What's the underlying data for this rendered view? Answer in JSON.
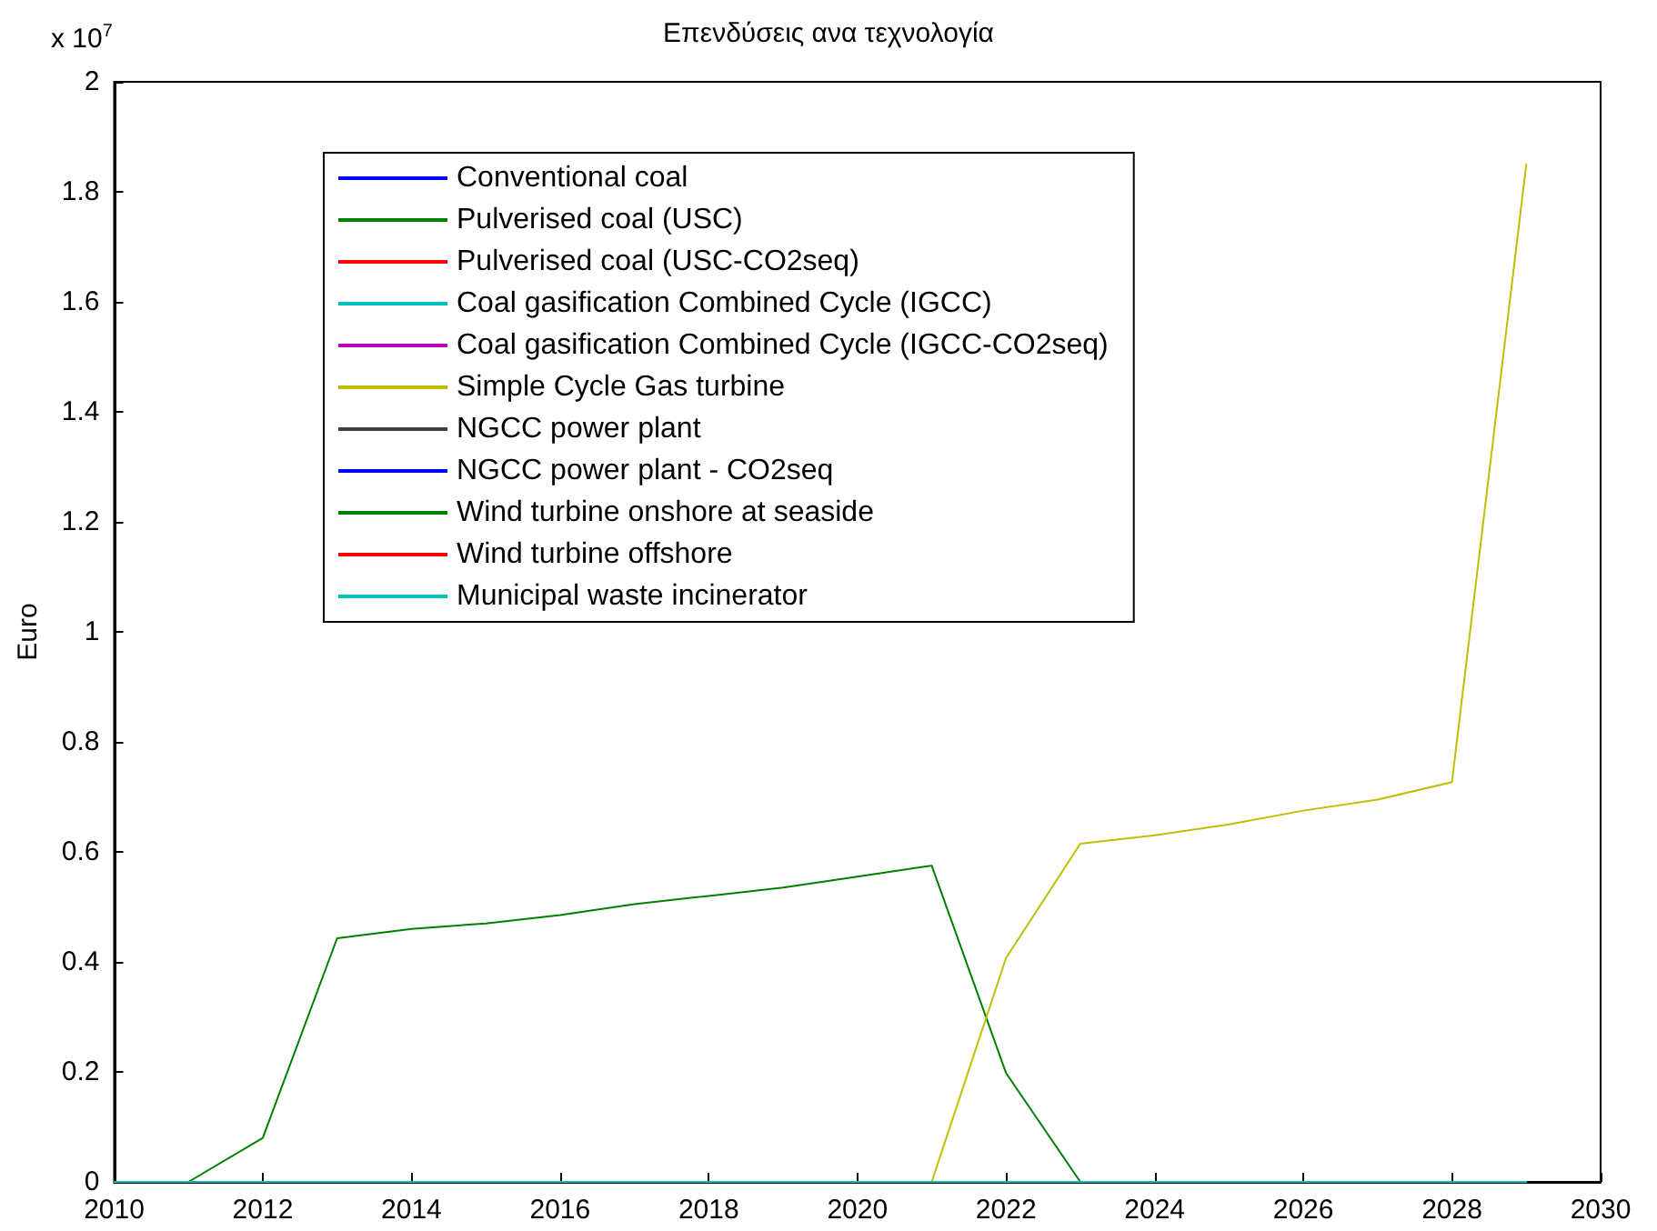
{
  "chart_data": {
    "type": "line",
    "title": "Επενδύσεις ανα τεχνολογία",
    "ylabel": "Euro",
    "annotations": [
      "x 10$^{7}$"
    ],
    "x": [
      2010,
      2011,
      2012,
      2013,
      2014,
      2015,
      2016,
      2017,
      2018,
      2019,
      2020,
      2021,
      2022,
      2023,
      2024,
      2025,
      2026,
      2027,
      2028,
      2029
    ],
    "xlim": [
      2010,
      2030
    ],
    "xticks": [
      2010,
      2012,
      2014,
      2016,
      2018,
      2020,
      2022,
      2024,
      2026,
      2028,
      2030
    ],
    "ylim": [
      0,
      2
    ],
    "yticks": [
      0,
      0.2,
      0.4,
      0.6,
      0.8,
      1,
      1.2,
      1.4,
      1.6,
      1.8,
      2
    ],
    "grid": false,
    "legend": "top left",
    "marker": "none",
    "line_style": "solid",
    "series": [
      {
        "name": "Conventional coal",
        "color": "#0000ff",
        "values": [
          null,
          null,
          null,
          null,
          null,
          null,
          null,
          null,
          null,
          null,
          null,
          null,
          null,
          null,
          null,
          null,
          null,
          null,
          null,
          null
        ]
      },
      {
        "name": "Pulverised coal (USC)",
        "color": "#008000",
        "values": [
          null,
          0,
          0.08,
          0.443,
          0.46,
          0.47,
          0.485,
          0.505,
          0.52,
          0.535,
          0.555,
          0.575,
          0.198,
          0,
          null,
          null,
          null,
          null,
          null,
          null
        ]
      },
      {
        "name": "Pulverised coal (USC-CO2seq)",
        "color": "#ff0000",
        "values": [
          null,
          null,
          null,
          null,
          null,
          null,
          null,
          null,
          null,
          null,
          null,
          null,
          null,
          null,
          null,
          null,
          null,
          null,
          null,
          null
        ]
      },
      {
        "name": "Coal gasification Combined Cycle (IGCC)",
        "color": "#00bfbf",
        "values": [
          null,
          null,
          null,
          null,
          null,
          null,
          null,
          null,
          null,
          null,
          null,
          null,
          null,
          null,
          null,
          null,
          null,
          null,
          null,
          null
        ]
      },
      {
        "name": "Coal gasification Combined Cycle (IGCC-CO2seq)",
        "color": "#bf00bf",
        "values": [
          null,
          null,
          null,
          null,
          null,
          null,
          null,
          null,
          null,
          null,
          null,
          null,
          null,
          null,
          null,
          null,
          null,
          null,
          null,
          null
        ]
      },
      {
        "name": "Simple Cycle Gas turbine",
        "color": "#bfbf00",
        "values": [
          null,
          null,
          null,
          null,
          null,
          null,
          null,
          null,
          null,
          null,
          null,
          0,
          0.407,
          0.615,
          0.63,
          0.65,
          0.675,
          0.695,
          0.727,
          1.85
        ]
      },
      {
        "name": "NGCC power plant",
        "color": "#404040",
        "values": [
          null,
          null,
          null,
          null,
          null,
          null,
          null,
          null,
          null,
          null,
          null,
          null,
          null,
          null,
          null,
          null,
          null,
          null,
          null,
          null
        ]
      },
      {
        "name": "NGCC power plant - CO2seq",
        "color": "#0000ff",
        "values": [
          null,
          null,
          null,
          null,
          null,
          null,
          null,
          null,
          null,
          null,
          null,
          null,
          null,
          null,
          null,
          null,
          null,
          null,
          null,
          null
        ]
      },
      {
        "name": "Wind turbine onshore at seaside",
        "color": "#008000",
        "values": [
          null,
          null,
          null,
          null,
          null,
          null,
          null,
          null,
          null,
          null,
          null,
          null,
          null,
          null,
          null,
          null,
          null,
          null,
          null,
          null
        ]
      },
      {
        "name": "Wind turbine offshore",
        "color": "#ff0000",
        "values": [
          null,
          null,
          null,
          null,
          null,
          null,
          null,
          null,
          null,
          null,
          null,
          null,
          null,
          null,
          null,
          null,
          null,
          null,
          null,
          null
        ]
      },
      {
        "name": "Municipal waste incinerator",
        "color": "#00bfbf",
        "values": [
          0,
          0,
          0,
          0,
          0,
          0,
          0,
          0,
          0,
          0,
          0,
          0,
          0,
          0,
          0,
          0,
          0,
          0,
          0,
          0
        ]
      }
    ]
  }
}
